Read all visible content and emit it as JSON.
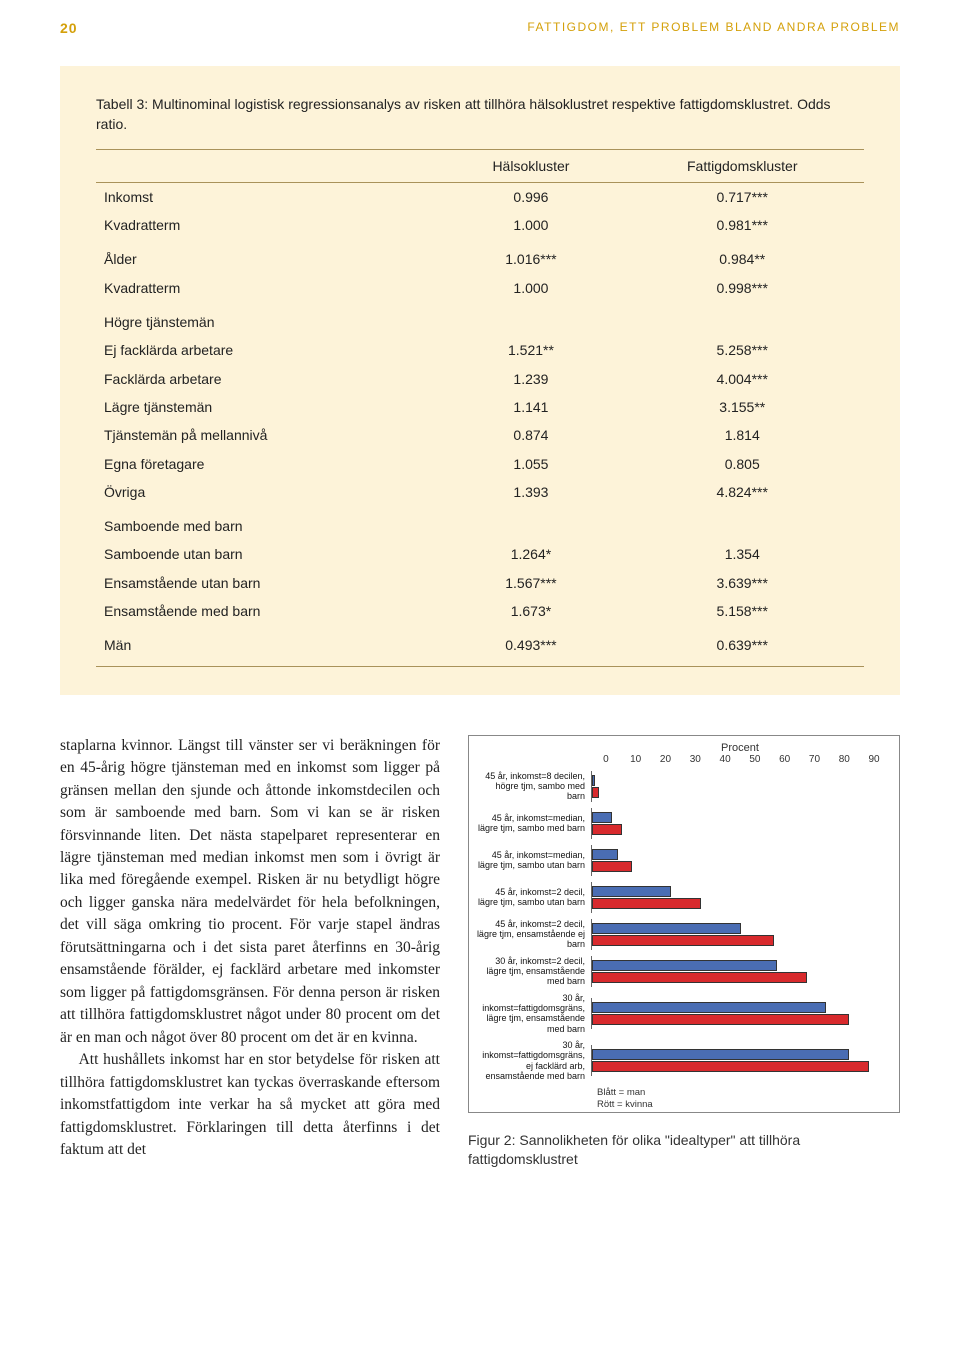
{
  "page_number": "20",
  "running_title": "FATTIGDOM, ETT PROBLEM BLAND ANDRA PROBLEM",
  "table": {
    "caption": "Tabell 3: Multinominal logistisk regressionsanalys av risken att tillhöra hälsoklustret respektive fattigdomsklustret. Odds ratio.",
    "columns": [
      "",
      "Hälsokluster",
      "Fattigdomskluster"
    ],
    "rows": [
      {
        "cells": [
          "Inkomst",
          "0.996",
          "0.717***"
        ],
        "section_start": false
      },
      {
        "cells": [
          "Kvadratterm",
          "1.000",
          "0.981***"
        ],
        "section_start": false
      },
      {
        "cells": [
          "Ålder",
          "1.016***",
          "0.984**"
        ],
        "section_start": true
      },
      {
        "cells": [
          "Kvadratterm",
          "1.000",
          "0.998***"
        ],
        "section_start": false
      },
      {
        "cells": [
          "Högre tjänstemän",
          "",
          ""
        ],
        "section_start": true
      },
      {
        "cells": [
          "Ej facklärda arbetare",
          "1.521**",
          "5.258***"
        ],
        "section_start": false
      },
      {
        "cells": [
          "Facklärda arbetare",
          "1.239",
          "4.004***"
        ],
        "section_start": false
      },
      {
        "cells": [
          "Lägre tjänstemän",
          "1.141",
          "3.155**"
        ],
        "section_start": false
      },
      {
        "cells": [
          "Tjänstemän på mellannivå",
          "0.874",
          "1.814"
        ],
        "section_start": false
      },
      {
        "cells": [
          "Egna företagare",
          "1.055",
          "0.805"
        ],
        "section_start": false
      },
      {
        "cells": [
          "Övriga",
          "1.393",
          "4.824***"
        ],
        "section_start": false
      },
      {
        "cells": [
          "Samboende med barn",
          "",
          ""
        ],
        "section_start": true
      },
      {
        "cells": [
          "Samboende utan barn",
          "1.264*",
          "1.354"
        ],
        "section_start": false
      },
      {
        "cells": [
          "Ensamstående utan barn",
          "1.567***",
          "3.639***"
        ],
        "section_start": false
      },
      {
        "cells": [
          "Ensamstående med barn",
          "1.673*",
          "5.158***"
        ],
        "section_start": false
      },
      {
        "cells": [
          "Män",
          "0.493***",
          "0.639***"
        ],
        "last_row": true
      }
    ]
  },
  "body_paragraphs": [
    "staplarna kvinnor. Längst till vänster ser vi beräkningen för en 45-årig högre tjänsteman med en inkomst som ligger på gränsen mellan den sjunde och åttonde inkomstdecilen och som är samboende med barn. Som vi kan se är risken försvinnande liten. Det nästa stapelparet representerar en lägre tjänsteman med median inkomst men som i övrigt är lika med föregående exempel. Risken är nu betydligt högre och ligger ganska nära medelvärdet för hela befolkningen, det vill säga omkring tio procent. För varje stapel ändras förutsättningarna och i det sista paret återfinns en 30-årig ensamstående förälder, ej facklärd arbetare med inkomster som ligger på fattigdomsgränsen. För denna person är risken att tillhöra fattigdomsklustret något under 80 procent om det är en man och något över 80 procent om det är en kvinna.",
    "Att hushållets inkomst har en stor betydelse för risken att tillhöra fattigdomsklustret kan tyckas överraskande eftersom inkomstfattigdom inte verkar ha så mycket att göra med fattigdomsklustret. Förklaringen till detta återfinns i det faktum att det"
  ],
  "chart": {
    "type": "bar",
    "axis_title": "Procent",
    "xlim": [
      0,
      90
    ],
    "ticks": [
      "0",
      "10",
      "20",
      "30",
      "40",
      "50",
      "60",
      "70",
      "80",
      "90"
    ],
    "tick_label_fontsize": 10,
    "category_label_fontsize": 9,
    "axis_title_fontsize": 11,
    "colors": {
      "man": "#4a6db3",
      "kvinna": "#d82a2d",
      "bar_border": "#333333"
    },
    "categories": [
      {
        "label": "45 år, inkomst=8 decilen, högre tjm, sambo med barn",
        "man": 1,
        "kvinna": 2
      },
      {
        "label": "45 år, inkomst=median, lägre tjm, sambo med barn",
        "man": 6,
        "kvinna": 9
      },
      {
        "label": "45 år, inkomst=median, lägre tjm, sambo utan barn",
        "man": 8,
        "kvinna": 12
      },
      {
        "label": "45 år, inkomst=2 decil, lägre tjm, sambo utan barn",
        "man": 24,
        "kvinna": 33
      },
      {
        "label": "45 år, inkomst=2 decil, lägre tjm, ensamstående ej barn",
        "man": 45,
        "kvinna": 55
      },
      {
        "label": "30 år, inkomst=2 decil, lägre tjm, ensamstående med barn",
        "man": 56,
        "kvinna": 65
      },
      {
        "label": "30 år, inkomst=fattigdomsgräns, lägre tjm, ensamstående med barn",
        "man": 71,
        "kvinna": 78
      },
      {
        "label": "30 år, inkomst=fattigdomsgräns, ej facklärd arb, ensamstående med barn",
        "man": 78,
        "kvinna": 84
      }
    ],
    "legend": {
      "man": "Blått = man",
      "kvinna": "Rött = kvinna"
    },
    "caption": "Figur 2: Sannolikheten för olika \"idealtyper\" att tillhöra fattigdomsklustret"
  }
}
